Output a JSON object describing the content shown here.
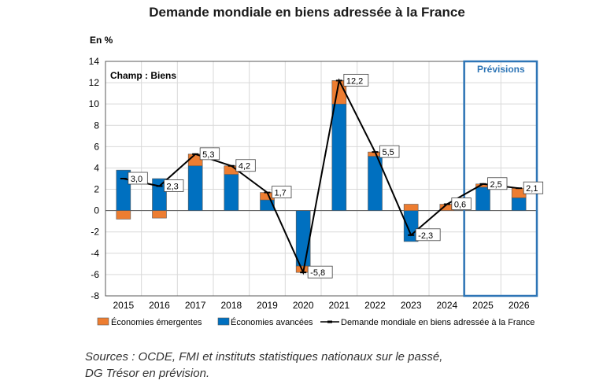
{
  "title": "Demande mondiale en biens adressée à la France",
  "unit_label": "En %",
  "colors": {
    "emergentes": "#ED7D31",
    "avancees": "#0070C0",
    "line": "#000000",
    "forecast_box": "#2E75B6",
    "forecast_text": "#2E75B6"
  },
  "chart_data": {
    "type": "bar",
    "title": "Demande mondiale en biens adressée à la France",
    "ylabel": "En %",
    "annotation": "Champ : Biens",
    "forecast_label": "Prévisions",
    "forecast_years": [
      "2025",
      "2026"
    ],
    "categories": [
      "2015",
      "2016",
      "2017",
      "2018",
      "2019",
      "2020",
      "2021",
      "2022",
      "2023",
      "2024",
      "2025",
      "2026"
    ],
    "ylim": [
      -8,
      14
    ],
    "yticks": [
      -8,
      -6,
      -4,
      -2,
      0,
      2,
      4,
      6,
      8,
      10,
      12,
      14
    ],
    "grid": true,
    "series": [
      {
        "name": "Économies émergentes",
        "kind": "stacked-bar",
        "values": [
          -0.8,
          -0.7,
          1.1,
          0.8,
          0.7,
          -0.6,
          2.2,
          0.4,
          0.6,
          0.6,
          0.3,
          0.9
        ]
      },
      {
        "name": "Économies avancées",
        "kind": "stacked-bar",
        "values": [
          3.8,
          3.0,
          4.2,
          3.4,
          1.0,
          -5.2,
          10.0,
          5.1,
          -2.9,
          0.0,
          2.2,
          1.2
        ]
      },
      {
        "name": "Demande mondiale en biens adressée à la France",
        "kind": "line",
        "values": [
          3.0,
          2.3,
          5.3,
          4.2,
          1.7,
          -5.8,
          12.2,
          5.5,
          -2.3,
          0.6,
          2.5,
          2.1
        ],
        "labels": [
          "3,0",
          "2,3",
          "5,3",
          "4,2",
          "1,7",
          "-5,8",
          "12,2",
          "5,5",
          "-2,3",
          "0,6",
          "2,5",
          "2,1"
        ]
      }
    ]
  },
  "source": {
    "line1": "Sources : OCDE, FMI et instituts statistiques nationaux sur le passé,",
    "line2": "DG Trésor en prévision."
  }
}
